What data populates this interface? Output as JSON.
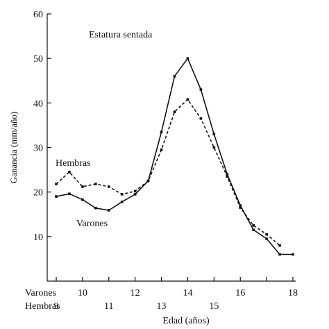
{
  "chart_data": {
    "type": "line",
    "title": "Estatura sentada",
    "ylabel": "Ganancia (mm/año)",
    "xlabel": "Edad (años)",
    "ylim": [
      0,
      60
    ],
    "yticks": [
      10,
      20,
      30,
      40,
      50,
      60
    ],
    "x_axis_rows": [
      {
        "label": "Varones",
        "ticks": [
          {
            "value": 10,
            "label": "10"
          },
          {
            "value": 12,
            "label": "12"
          },
          {
            "value": 14,
            "label": "14"
          },
          {
            "value": 16,
            "label": "16"
          },
          {
            "value": 18,
            "label": "18"
          }
        ]
      },
      {
        "label": "Hembras",
        "ticks": [
          {
            "value": 9,
            "label": "9"
          },
          {
            "value": 11,
            "label": "11"
          },
          {
            "value": 13,
            "label": "13"
          },
          {
            "value": 15,
            "label": "15"
          }
        ]
      }
    ],
    "xlim": [
      9,
      18
    ],
    "series": [
      {
        "name": "Varones",
        "style": "solid",
        "color": "#111111",
        "x": [
          9,
          9.5,
          10,
          10.5,
          11,
          11.5,
          12,
          12.5,
          13,
          13.5,
          14,
          14.5,
          15,
          15.5,
          16,
          16.5,
          17,
          17.5,
          18
        ],
        "y": [
          19,
          19.6,
          18.3,
          16.4,
          15.9,
          17.8,
          19.5,
          22.5,
          33.5,
          46,
          50,
          43,
          33,
          24,
          17,
          11.5,
          9.5,
          6,
          6
        ]
      },
      {
        "name": "Hembras",
        "style": "dashed",
        "color": "#111111",
        "x": [
          9,
          9.5,
          10,
          10.5,
          11,
          11.5,
          12,
          12.5,
          13,
          13.5,
          14,
          14.5,
          15,
          15.5,
          16,
          16.5,
          17,
          17.5
        ],
        "y": [
          21.8,
          24.5,
          21.2,
          21.8,
          21.2,
          19.5,
          20.2,
          22.5,
          29.5,
          38,
          40.8,
          36.5,
          30,
          23.5,
          16.5,
          12.5,
          10.5,
          8
        ]
      }
    ]
  }
}
